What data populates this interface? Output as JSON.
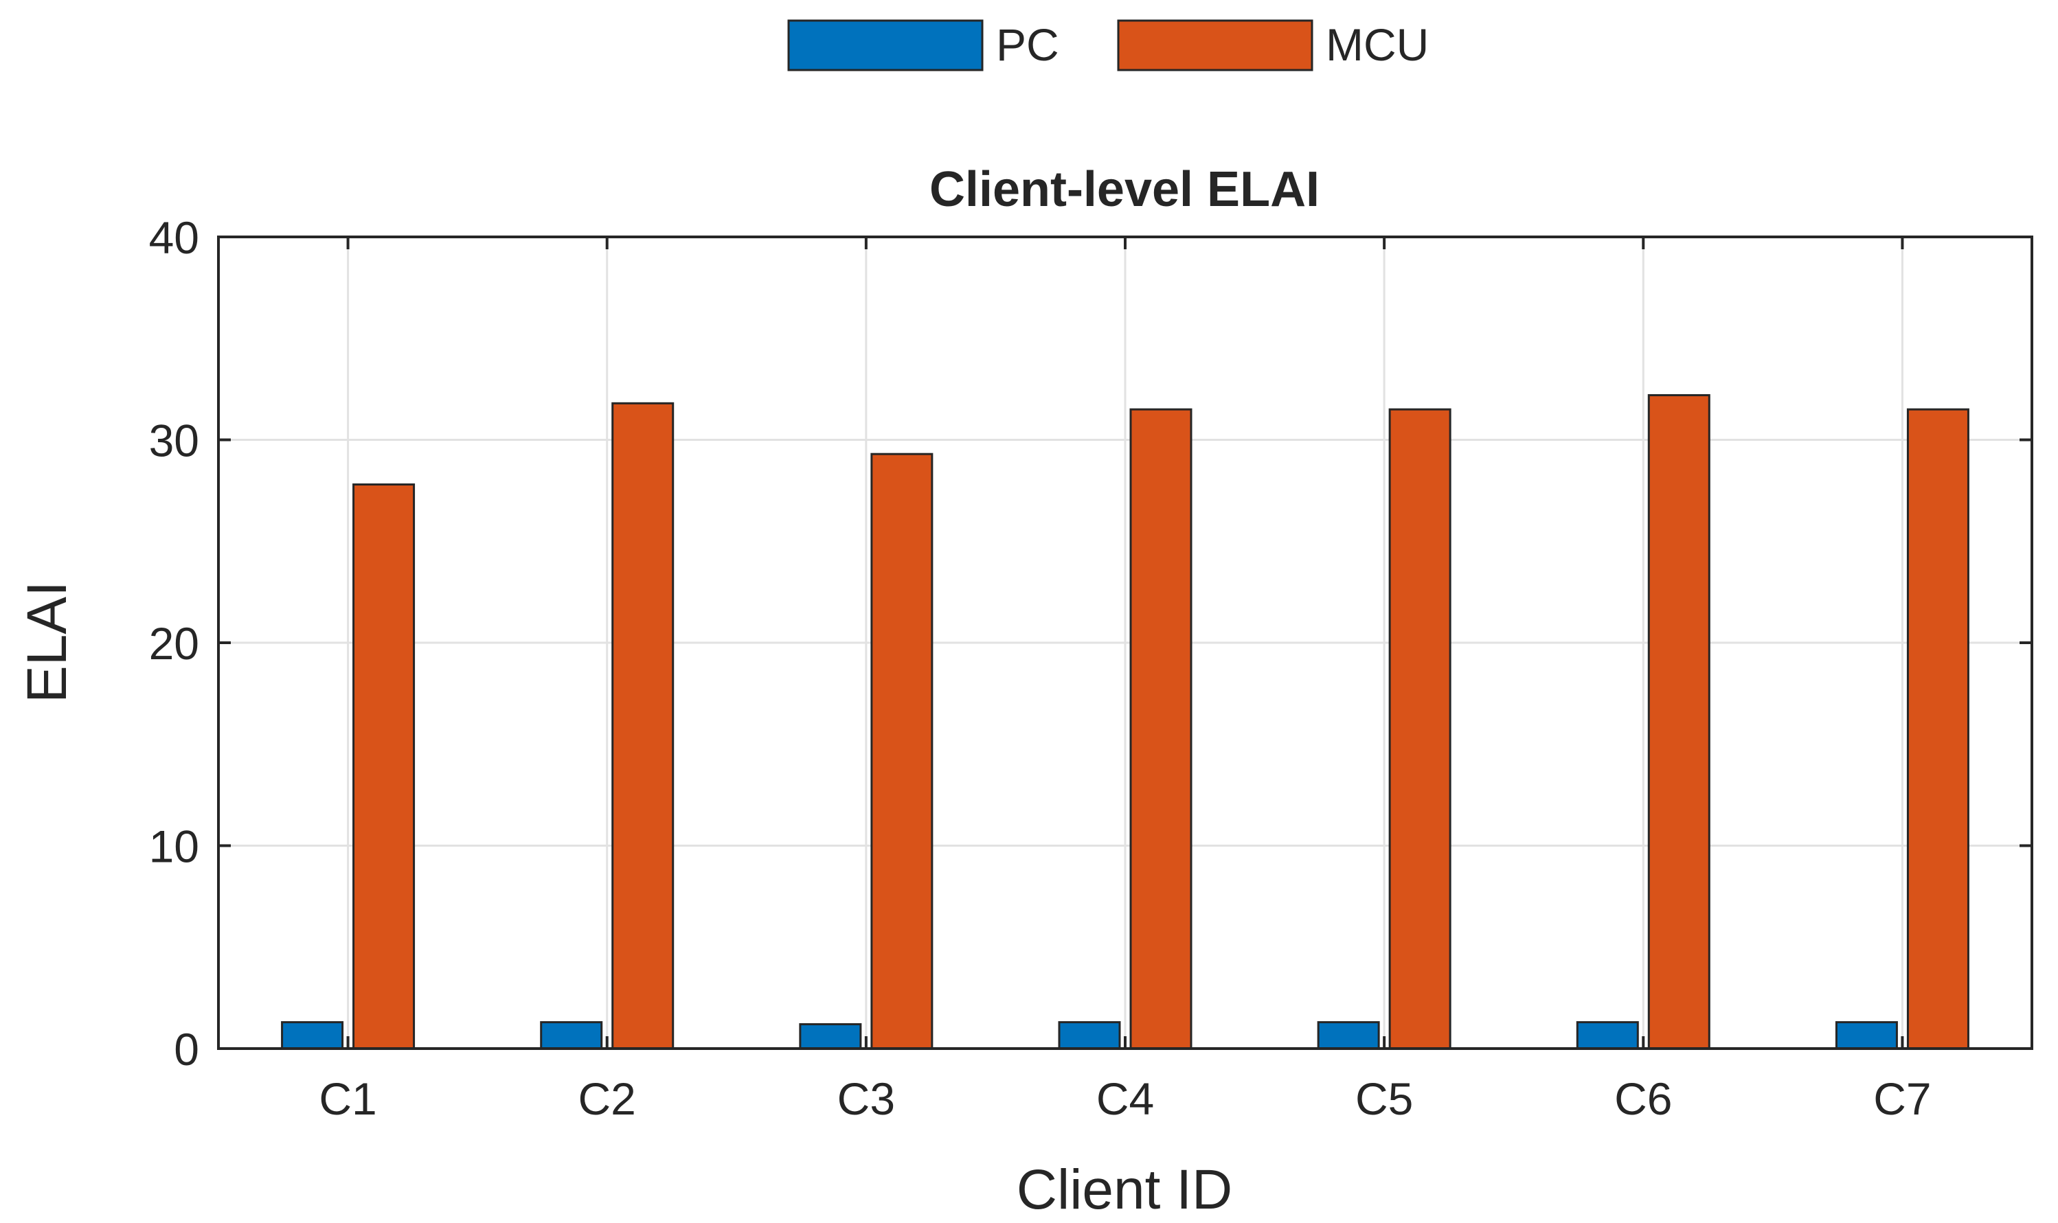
{
  "chart_data": {
    "type": "bar",
    "title": "Client-level ELAI",
    "xlabel": "Client ID",
    "ylabel": "ELAI",
    "categories": [
      "C1",
      "C2",
      "C3",
      "C4",
      "C5",
      "C6",
      "C7"
    ],
    "series": [
      {
        "name": "PC",
        "color": "#0072BD",
        "values": [
          1.3,
          1.3,
          1.2,
          1.3,
          1.3,
          1.3,
          1.3
        ]
      },
      {
        "name": "MCU",
        "color": "#D95319",
        "values": [
          27.8,
          31.8,
          29.3,
          31.5,
          31.5,
          32.2,
          31.5
        ]
      }
    ],
    "ylim": [
      0,
      40
    ],
    "yticks": [
      0,
      10,
      20,
      30,
      40
    ],
    "grid": true,
    "legend_position": "top-center"
  }
}
